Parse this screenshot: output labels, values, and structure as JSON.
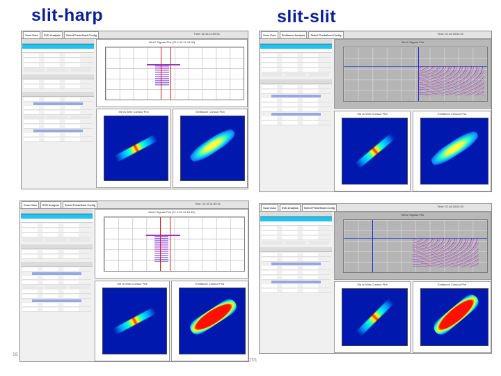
{
  "titles": {
    "left": "slit-harp",
    "right": "slit-slit"
  },
  "screens": [
    {
      "id": "top-left",
      "tabs": [
        "Scan Data",
        "SVD Analysis",
        "Select Predefined Config"
      ],
      "timestamp": "Time: 02.16 11:59:31",
      "waveform_title": "Wire2 Signals Plot (21.4.02.14.18.30)",
      "contour_titles": [
        "Slit vs Wire Contour Plot",
        "Emittance Contour Plot"
      ],
      "style": "harp"
    },
    {
      "id": "top-right",
      "tabs": [
        "Scan Data",
        "Emittance Analysis",
        "Select Predefined Config"
      ],
      "timestamp": "Time: 02.16 15:02:20",
      "waveform_title": "Wire2 Signals Plot",
      "contour_titles": [
        "Slit vs Wire Contour Plot",
        "Emittance Contour Plot"
      ],
      "style": "slit"
    },
    {
      "id": "bottom-left",
      "tabs": [
        "Scan Data",
        "SVD Analysis",
        "Select Predefined Config"
      ],
      "timestamp": "Time: 02.16 11:59:31",
      "waveform_title": "Wire2 Signals Plot (21.4.02.14.18.30)",
      "contour_titles": [
        "Slit vs Wire Contour Plot",
        "Emittance Contour Plot"
      ],
      "style": "harp-red"
    },
    {
      "id": "bottom-right",
      "tabs": [
        "Scan Data",
        "SVD Analysis",
        "Select Predefined Config"
      ],
      "timestamp": "Time: 02.16 15:02:20",
      "waveform_title": "Wire2 Signals Plot",
      "contour_titles": [
        "Slit vs Wire Contour Plot",
        "Emittance Contour Plot"
      ],
      "style": "slit-red"
    }
  ],
  "footer": {
    "page_number": "18",
    "year": "201"
  }
}
